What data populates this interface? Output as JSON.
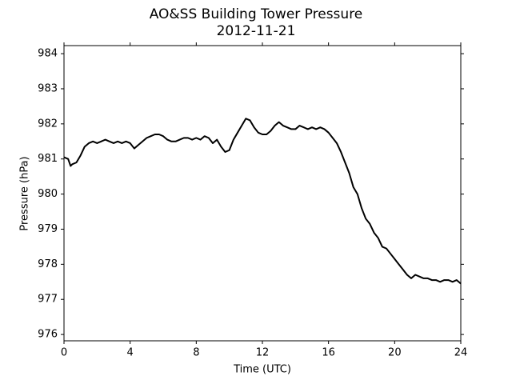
{
  "chart_data": {
    "type": "line",
    "title": "AO&SS Building Tower Pressure",
    "subtitle": "2012-11-21",
    "x_label": "Time (UTC)",
    "y_label": "Pressure (hPa)",
    "xlim": [
      0,
      24
    ],
    "xticks": [
      0,
      4,
      8,
      12,
      16,
      20,
      24
    ],
    "ylim": [
      975.82,
      984.23
    ],
    "yticks": [
      976,
      977,
      978,
      979,
      980,
      981,
      982,
      983,
      984
    ],
    "grid": false,
    "x": [
      0,
      0.25,
      0.4,
      0.5,
      0.75,
      1,
      1.25,
      1.5,
      1.75,
      2,
      2.25,
      2.5,
      2.75,
      3,
      3.25,
      3.5,
      3.75,
      4,
      4.25,
      4.5,
      4.75,
      5,
      5.25,
      5.5,
      5.75,
      6,
      6.25,
      6.5,
      6.75,
      7,
      7.25,
      7.5,
      7.75,
      8,
      8.25,
      8.5,
      8.75,
      9,
      9.25,
      9.5,
      9.75,
      10,
      10.25,
      10.5,
      10.75,
      11,
      11.25,
      11.5,
      11.75,
      12,
      12.25,
      12.5,
      12.75,
      13,
      13.25,
      13.5,
      13.75,
      14,
      14.25,
      14.5,
      14.75,
      15,
      15.25,
      15.5,
      15.75,
      16,
      16.25,
      16.5,
      16.75,
      17,
      17.25,
      17.5,
      17.75,
      18,
      18.25,
      18.5,
      18.75,
      19,
      19.25,
      19.5,
      19.75,
      20,
      20.25,
      20.5,
      20.75,
      21,
      21.25,
      21.5,
      21.75,
      22,
      22.25,
      22.5,
      22.75,
      23,
      23.25,
      23.5,
      23.75,
      24
    ],
    "series": [
      {
        "name": "Pressure",
        "color": "#000000",
        "values": [
          981.05,
          981.0,
          980.8,
          980.85,
          980.9,
          981.1,
          981.35,
          981.45,
          981.5,
          981.45,
          981.5,
          981.55,
          981.5,
          981.45,
          981.5,
          981.45,
          981.5,
          981.45,
          981.3,
          981.4,
          981.5,
          981.6,
          981.65,
          981.7,
          981.7,
          981.65,
          981.55,
          981.5,
          981.5,
          981.55,
          981.6,
          981.6,
          981.55,
          981.6,
          981.55,
          981.65,
          981.6,
          981.45,
          981.55,
          981.35,
          981.2,
          981.25,
          981.55,
          981.75,
          981.95,
          982.15,
          982.1,
          981.9,
          981.75,
          981.7,
          981.7,
          981.8,
          981.95,
          982.05,
          981.95,
          981.9,
          981.85,
          981.85,
          981.95,
          981.9,
          981.85,
          981.9,
          981.85,
          981.9,
          981.85,
          981.75,
          981.6,
          981.45,
          981.2,
          980.9,
          980.6,
          980.2,
          980.0,
          979.6,
          979.3,
          979.15,
          978.9,
          978.75,
          978.5,
          978.45,
          978.3,
          978.15,
          978.0,
          977.85,
          977.7,
          977.6,
          977.7,
          977.65,
          977.6,
          977.6,
          977.55,
          977.55,
          977.5,
          977.55,
          977.55,
          977.5,
          977.55,
          977.45
        ]
      }
    ]
  }
}
